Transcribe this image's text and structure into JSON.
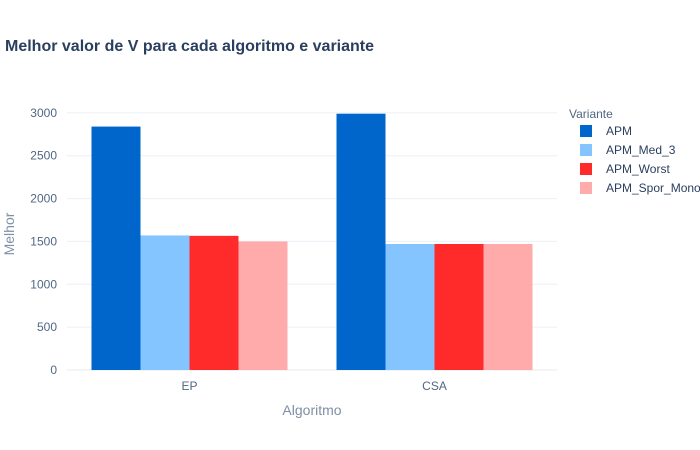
{
  "chart_data": {
    "type": "bar",
    "title": "Melhor valor de V para cada algoritmo e variante",
    "xlabel": "Algoritmo",
    "ylabel": "Melhor",
    "categories": [
      "EP",
      "CSA"
    ],
    "ylim": [
      0,
      3150
    ],
    "yticks": [
      0,
      500,
      1000,
      1500,
      2000,
      2500,
      3000
    ],
    "grid": true,
    "legend_title": "Variante",
    "legend_position": "right",
    "series": [
      {
        "name": "APM",
        "values": [
          2840,
          2990
        ],
        "color": "#0066cc"
      },
      {
        "name": "APM_Med_3",
        "values": [
          1570,
          1470
        ],
        "color": "#85c5ff"
      },
      {
        "name": "APM_Worst",
        "values": [
          1565,
          1470
        ],
        "color": "#ff2b2b"
      },
      {
        "name": "APM_Spor_Mono",
        "values": [
          1500,
          1470
        ],
        "color": "#ffabab"
      }
    ]
  }
}
